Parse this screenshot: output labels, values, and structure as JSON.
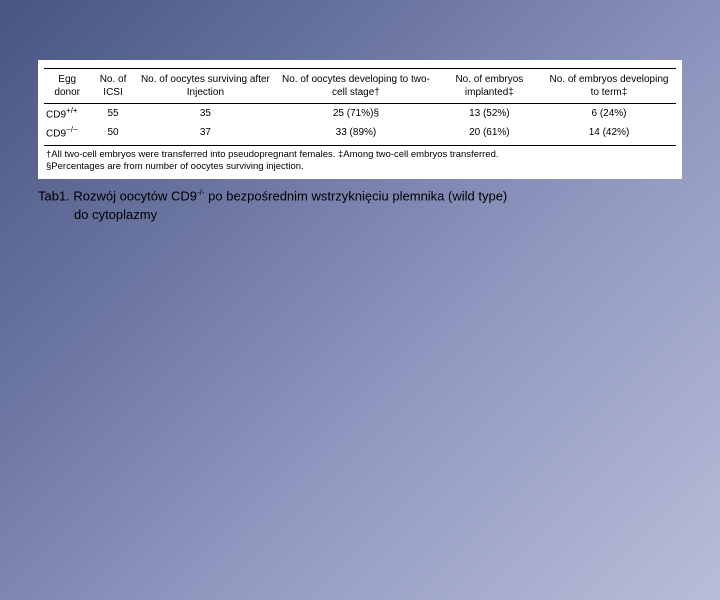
{
  "table": {
    "headers": [
      "Egg donor",
      "No. of ICSI",
      "No. of oocytes surviving after Injection",
      "No. of oocytes developing to two-cell stage†",
      "No. of embryos implanted‡",
      "No. of embryos developing to term‡"
    ],
    "rows": [
      {
        "donor_base": "CD9",
        "donor_sup": "+/+",
        "icsi": "55",
        "surviving": "35",
        "twocell": "25 (71%)§",
        "implanted": "13 (52%)",
        "term": "6 (24%)"
      },
      {
        "donor_base": "CD9",
        "donor_sup": "−/−",
        "icsi": "50",
        "surviving": "37",
        "twocell": "33 (89%)",
        "implanted": "20 (61%)",
        "term": "14 (42%)"
      }
    ],
    "footnote1": "†All two-cell embryos were transferred into pseudopregnant females.    ‡Among two-cell embryos transferred.",
    "footnote2": "§Percentages are from number of oocytes surviving injection."
  },
  "caption": {
    "prefix": "Tab1. Rozwój oocytów CD9",
    "sup": "-/-",
    "rest": " po bezpośrednim wstrzyknięciu plemnika (wild type)",
    "line2": "do cytoplazmy"
  },
  "style": {
    "background_gradient": [
      "#4a5480",
      "#6a74a0",
      "#9098c0",
      "#b8bed8"
    ],
    "table_bg": "#ffffff",
    "text_color": "#000000",
    "header_fontsize": 10,
    "cell_fontsize": 10,
    "footnote_fontsize": 9.5,
    "caption_fontsize": 13
  }
}
